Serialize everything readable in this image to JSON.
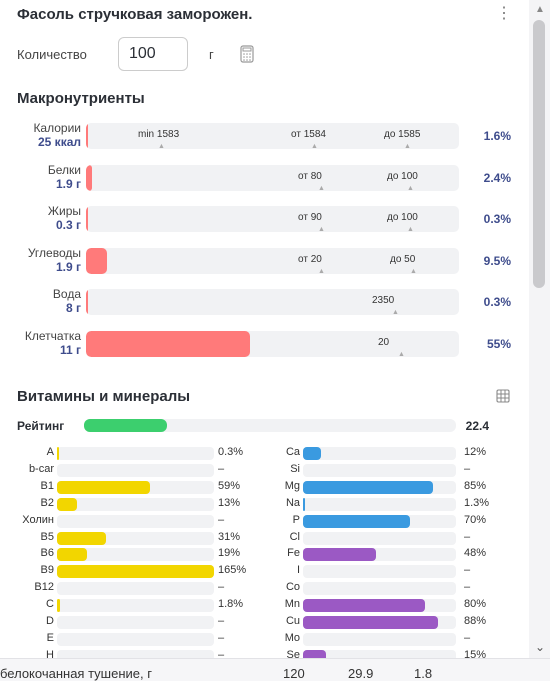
{
  "title": "Фасоль стручковая заморожен.",
  "quantity": {
    "label": "Количество",
    "value": "100",
    "unit": "г"
  },
  "macros_title": "Макронутриенты",
  "macros": [
    {
      "name": "Калории",
      "value": "25 ккал",
      "fill": 0.004,
      "marks": [
        {
          "text": "min 1583",
          "x": 52
        },
        {
          "text": "от 1584",
          "x": 205
        },
        {
          "text": "до 1585",
          "x": 298
        }
      ],
      "pct": "1.6%"
    },
    {
      "name": "Белки",
      "value": "1.9 г",
      "fill": 0.016,
      "marks": [
        {
          "text": "от 80",
          "x": 212
        },
        {
          "text": "до 100",
          "x": 301
        }
      ],
      "pct": "2.4%"
    },
    {
      "name": "Жиры",
      "value": "0.3 г",
      "fill": 0.003,
      "marks": [
        {
          "text": "от 90",
          "x": 212
        },
        {
          "text": "до 100",
          "x": 301
        }
      ],
      "pct": "0.3%"
    },
    {
      "name": "Углеводы",
      "value": "1.9 г",
      "fill": 0.057,
      "marks": [
        {
          "text": "от 20",
          "x": 212
        },
        {
          "text": "до 50",
          "x": 304
        }
      ],
      "pct": "9.5%"
    },
    {
      "name": "Вода",
      "value": "8 г",
      "fill": 0.003,
      "marks": [
        {
          "text": "2350",
          "x": 286
        }
      ],
      "pct": "0.3%"
    },
    {
      "name": "Клетчатка",
      "value": "11 г",
      "fill": 0.44,
      "marks": [
        {
          "text": "20",
          "x": 292
        }
      ],
      "pct": "55%"
    }
  ],
  "vm_title": "Витамины и минералы",
  "rating": {
    "label": "Рейтинг",
    "value": "22.4",
    "fill": 0.224
  },
  "vitamins": [
    {
      "name": "A",
      "fill": 0.003,
      "pct": "0.3%"
    },
    {
      "name": "b-car",
      "fill": 0,
      "pct": "–"
    },
    {
      "name": "B1",
      "fill": 0.59,
      "pct": "59%"
    },
    {
      "name": "B2",
      "fill": 0.13,
      "pct": "13%"
    },
    {
      "name": "Холин",
      "fill": 0,
      "pct": "–"
    },
    {
      "name": "B5",
      "fill": 0.31,
      "pct": "31%"
    },
    {
      "name": "B6",
      "fill": 0.19,
      "pct": "19%"
    },
    {
      "name": "B9",
      "fill": 1.0,
      "pct": "165%"
    },
    {
      "name": "B12",
      "fill": 0,
      "pct": "–"
    },
    {
      "name": "C",
      "fill": 0.018,
      "pct": "1.8%"
    },
    {
      "name": "D",
      "fill": 0,
      "pct": "–"
    },
    {
      "name": "E",
      "fill": 0,
      "pct": "–"
    },
    {
      "name": "H",
      "fill": 0,
      "pct": "–"
    }
  ],
  "minerals": [
    {
      "name": "Ca",
      "fill": 0.12,
      "pct": "12%",
      "color": "#3a9ae0"
    },
    {
      "name": "Si",
      "fill": 0,
      "pct": "–",
      "color": "#3a9ae0"
    },
    {
      "name": "Mg",
      "fill": 0.85,
      "pct": "85%",
      "color": "#3a9ae0"
    },
    {
      "name": "Na",
      "fill": 0.013,
      "pct": "1.3%",
      "color": "#3a9ae0"
    },
    {
      "name": "P",
      "fill": 0.7,
      "pct": "70%",
      "color": "#3a9ae0"
    },
    {
      "name": "Cl",
      "fill": 0,
      "pct": "–",
      "color": "#3a9ae0"
    },
    {
      "name": "Fe",
      "fill": 0.48,
      "pct": "48%",
      "color": "#9b59c4"
    },
    {
      "name": "I",
      "fill": 0,
      "pct": "–",
      "color": "#9b59c4"
    },
    {
      "name": "Co",
      "fill": 0,
      "pct": "–",
      "color": "#9b59c4"
    },
    {
      "name": "Mn",
      "fill": 0.8,
      "pct": "80%",
      "color": "#9b59c4"
    },
    {
      "name": "Cu",
      "fill": 0.88,
      "pct": "88%",
      "color": "#9b59c4"
    },
    {
      "name": "Mo",
      "fill": 0,
      "pct": "–",
      "color": "#9b59c4"
    },
    {
      "name": "Se",
      "fill": 0.15,
      "pct": "15%",
      "color": "#9b59c4"
    }
  ],
  "colors": {
    "vitamin": "#f2d600",
    "macro": "#ff7a7a",
    "rating": "#3ccf6e",
    "accent": "#3e4c8c"
  },
  "table_strip": {
    "name": "белокочанная тушение, г",
    "c1": "120",
    "c2": "29.9",
    "c3": "1.8"
  }
}
